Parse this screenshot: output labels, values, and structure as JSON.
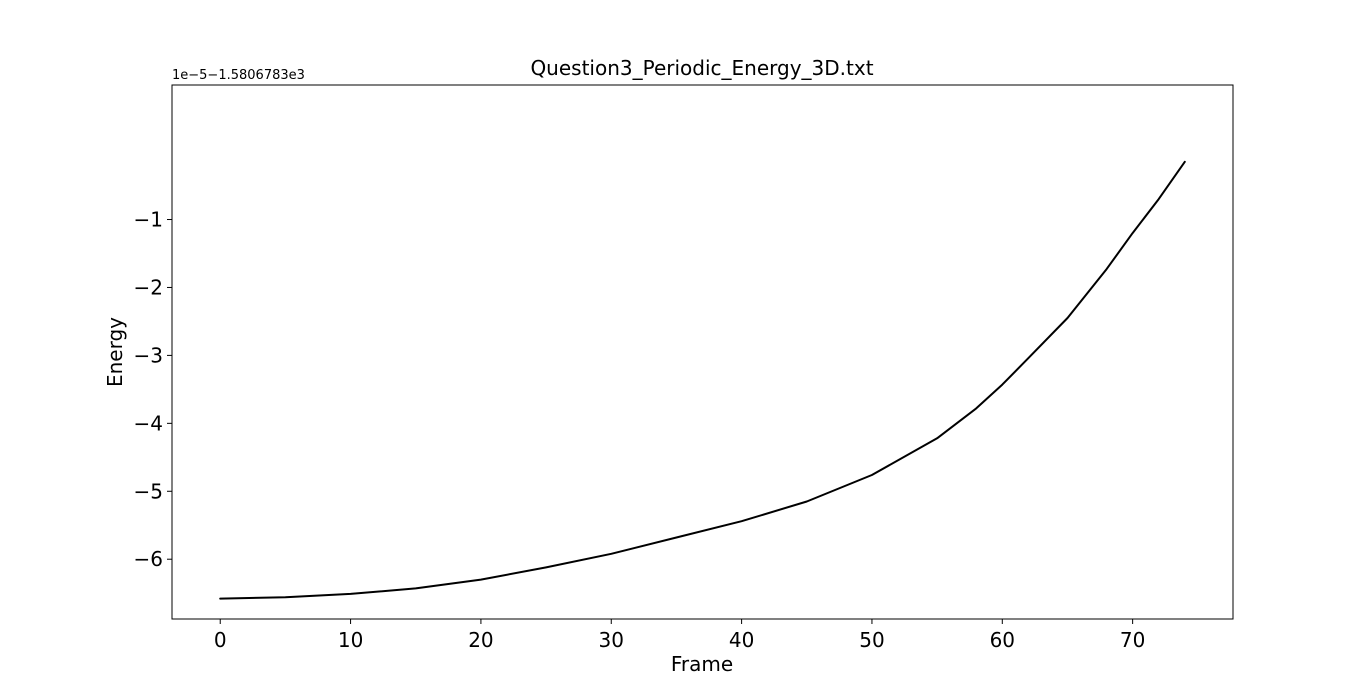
{
  "chart_data": {
    "type": "line",
    "title": "Question3_Periodic_Energy_3D.txt",
    "xlabel": "Frame",
    "ylabel": "Energy",
    "y_offset_text": "1e−5−1.5806783e3",
    "xlim": [
      -3.7,
      77.7
    ],
    "ylim": [
      -6.88,
      0.98
    ],
    "xticks": [
      0,
      10,
      20,
      30,
      40,
      50,
      60,
      70
    ],
    "xtick_labels": [
      "0",
      "10",
      "20",
      "30",
      "40",
      "50",
      "60",
      "70"
    ],
    "yticks": [
      -6,
      -5,
      -4,
      -3,
      -2,
      -1
    ],
    "ytick_labels": [
      "−6",
      "−5",
      "−4",
      "−3",
      "−2",
      "−1"
    ],
    "grid": false,
    "series": [
      {
        "color": "#000000",
        "x": [
          0,
          5,
          10,
          15,
          20,
          25,
          30,
          35,
          40,
          45,
          50,
          55,
          58,
          60,
          62,
          65,
          68,
          70,
          72,
          74
        ],
        "y": [
          -6.58,
          -6.56,
          -6.51,
          -6.43,
          -6.3,
          -6.12,
          -5.92,
          -5.68,
          -5.44,
          -5.15,
          -4.76,
          -4.22,
          -3.78,
          -3.43,
          -3.04,
          -2.45,
          -1.73,
          -1.2,
          -0.7,
          -0.15
        ]
      }
    ]
  }
}
